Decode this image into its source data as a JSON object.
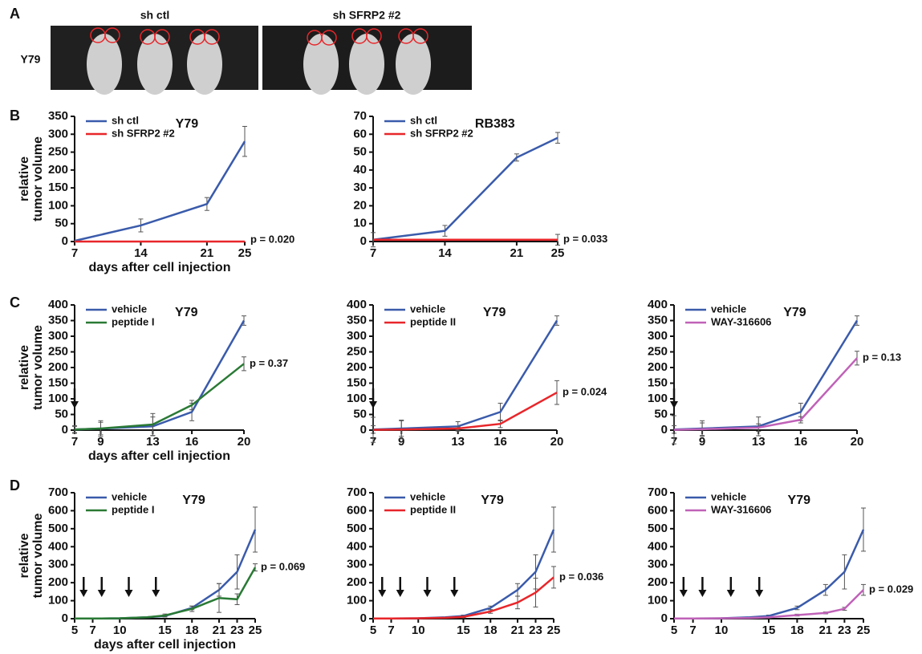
{
  "panel_labels": [
    "A",
    "B",
    "C",
    "D"
  ],
  "panel_a": {
    "columns": [
      "sh ctl",
      "sh SFRP2 #2"
    ],
    "row_label": "Y79"
  },
  "chart_data": [
    {
      "type": "line",
      "title": "Y79",
      "x": [
        7,
        14,
        21,
        25
      ],
      "xlim": [
        7,
        25
      ],
      "xticks": [
        7,
        14,
        21,
        25
      ],
      "ylim": [
        0,
        350
      ],
      "yticks": [
        0,
        50,
        100,
        150,
        200,
        250,
        300,
        350
      ],
      "xlabel": "days after cell injection",
      "ylabel": [
        "relative",
        "tumor volume"
      ],
      "annotation": "p = 0.020",
      "series": [
        {
          "name": "sh ctl",
          "color": "#3a5bab",
          "values": [
            2,
            45,
            105,
            280
          ],
          "errors": [
            0,
            18,
            18,
            42
          ]
        },
        {
          "name": "sh SFRP2 #2",
          "color": "#e8262a",
          "values": [
            0,
            0,
            0,
            0
          ],
          "errors": [
            0,
            0,
            0,
            0
          ]
        }
      ]
    },
    {
      "type": "line",
      "title": "RB383",
      "x": [
        7,
        14,
        21,
        25
      ],
      "xlim": [
        7,
        25
      ],
      "xticks": [
        7,
        14,
        21,
        25
      ],
      "ylim": [
        0,
        70
      ],
      "yticks": [
        0,
        10,
        20,
        30,
        40,
        50,
        60,
        70
      ],
      "annotation": "p = 0.033",
      "series": [
        {
          "name": "sh ctl",
          "color": "#3a5bab",
          "values": [
            1,
            6,
            47,
            58
          ],
          "errors": [
            0,
            3,
            2,
            3
          ]
        },
        {
          "name": "sh SFRP2 #2",
          "color": "#e8262a",
          "values": [
            1,
            1,
            1,
            1
          ],
          "errors": [
            4,
            0,
            0,
            3
          ]
        }
      ]
    },
    {
      "type": "line",
      "title": "Y79",
      "x": [
        7,
        9,
        13,
        16,
        20
      ],
      "xlim": [
        7,
        20
      ],
      "xticks": [
        7,
        9,
        13,
        16,
        20
      ],
      "ylim": [
        0,
        400
      ],
      "yticks": [
        0,
        50,
        100,
        150,
        200,
        250,
        300,
        350,
        400
      ],
      "xlabel": "days after cell injection",
      "ylabel": [
        "relative",
        "tumor volume"
      ],
      "annotation": "p = 0.37",
      "arrows_x": [
        7
      ],
      "series": [
        {
          "name": "vehicle",
          "color": "#3a5bab",
          "values": [
            2,
            5,
            12,
            58,
            350
          ],
          "errors": [
            12,
            25,
            30,
            28,
            15
          ]
        },
        {
          "name": "peptide I",
          "color": "#2a7a35",
          "values": [
            2,
            5,
            18,
            80,
            212
          ],
          "errors": [
            10,
            20,
            35,
            15,
            22
          ]
        }
      ]
    },
    {
      "type": "line",
      "title": "Y79",
      "x": [
        7,
        9,
        13,
        16,
        20
      ],
      "xlim": [
        7,
        20
      ],
      "xticks": [
        7,
        9,
        13,
        16,
        20
      ],
      "ylim": [
        0,
        400
      ],
      "yticks": [
        0,
        50,
        100,
        150,
        200,
        250,
        300,
        350,
        400
      ],
      "annotation": "p = 0.024",
      "arrows_x": [
        7
      ],
      "series": [
        {
          "name": "vehicle",
          "color": "#3a5bab",
          "values": [
            2,
            5,
            12,
            58,
            350
          ],
          "errors": [
            12,
            25,
            15,
            28,
            15
          ]
        },
        {
          "name": "peptide II",
          "color": "#e8262a",
          "values": [
            1,
            2,
            5,
            20,
            120
          ],
          "errors": [
            40,
            30,
            5,
            12,
            38
          ]
        }
      ]
    },
    {
      "type": "line",
      "title": "Y79",
      "x": [
        7,
        9,
        13,
        16,
        20
      ],
      "xlim": [
        7,
        20
      ],
      "xticks": [
        7,
        9,
        13,
        16,
        20
      ],
      "ylim": [
        0,
        400
      ],
      "yticks": [
        0,
        50,
        100,
        150,
        200,
        250,
        300,
        350,
        400
      ],
      "annotation": "p = 0.13",
      "arrows_x": [
        7
      ],
      "series": [
        {
          "name": "vehicle",
          "color": "#3a5bab",
          "values": [
            2,
            5,
            12,
            58,
            350
          ],
          "errors": [
            12,
            25,
            30,
            28,
            15
          ]
        },
        {
          "name": "WAY-316606",
          "color": "#c062b8",
          "values": [
            1,
            3,
            8,
            33,
            230
          ],
          "errors": [
            45,
            20,
            12,
            10,
            22
          ]
        }
      ]
    },
    {
      "type": "line",
      "title": "Y79",
      "x": [
        5,
        7,
        10,
        13,
        15,
        18,
        21,
        23,
        25
      ],
      "xlim": [
        5,
        25
      ],
      "xticks": [
        5,
        7,
        10,
        15,
        18,
        21,
        23,
        25
      ],
      "ylim": [
        0,
        700
      ],
      "yticks": [
        0,
        100,
        200,
        300,
        400,
        500,
        600,
        700
      ],
      "xlabel": "days after cell injection",
      "ylabel": [
        "relative",
        "tumor volume"
      ],
      "annotation": "p = 0.069",
      "arrows_x": [
        6,
        8,
        11,
        14
      ],
      "series": [
        {
          "name": "vehicle",
          "color": "#3a5bab",
          "values": [
            1,
            1,
            2,
            8,
            15,
            60,
            160,
            260,
            495
          ],
          "errors": [
            0,
            0,
            0,
            0,
            5,
            10,
            35,
            95,
            125
          ]
        },
        {
          "name": "peptide I",
          "color": "#2a7a35",
          "values": [
            1,
            1,
            2,
            8,
            18,
            55,
            115,
            108,
            285
          ],
          "errors": [
            0,
            0,
            0,
            0,
            8,
            15,
            80,
            30,
            20
          ]
        }
      ]
    },
    {
      "type": "line",
      "title": "Y79",
      "x": [
        5,
        7,
        10,
        13,
        15,
        18,
        21,
        23,
        25
      ],
      "xlim": [
        5,
        25
      ],
      "xticks": [
        5,
        7,
        10,
        15,
        18,
        21,
        23,
        25
      ],
      "ylim": [
        0,
        700
      ],
      "yticks": [
        0,
        100,
        200,
        300,
        400,
        500,
        600,
        700
      ],
      "annotation": "p = 0.036",
      "arrows_x": [
        6,
        8,
        11,
        14
      ],
      "series": [
        {
          "name": "vehicle",
          "color": "#3a5bab",
          "values": [
            1,
            1,
            2,
            8,
            15,
            60,
            160,
            260,
            495
          ],
          "errors": [
            0,
            0,
            0,
            0,
            5,
            10,
            35,
            95,
            125
          ]
        },
        {
          "name": "peptide II",
          "color": "#e8262a",
          "values": [
            1,
            1,
            2,
            5,
            10,
            40,
            90,
            145,
            230
          ],
          "errors": [
            0,
            0,
            0,
            0,
            5,
            10,
            35,
            80,
            60
          ]
        }
      ]
    },
    {
      "type": "line",
      "title": "Y79",
      "x": [
        5,
        7,
        10,
        13,
        15,
        18,
        21,
        23,
        25
      ],
      "xlim": [
        5,
        25
      ],
      "xticks": [
        5,
        7,
        10,
        15,
        18,
        21,
        23,
        25
      ],
      "ylim": [
        0,
        700
      ],
      "yticks": [
        0,
        100,
        200,
        300,
        400,
        500,
        600,
        700
      ],
      "annotation": "p = 0.029",
      "arrows_x": [
        6,
        8,
        11,
        14
      ],
      "series": [
        {
          "name": "vehicle",
          "color": "#3a5bab",
          "values": [
            1,
            1,
            2,
            8,
            15,
            60,
            160,
            260,
            495
          ],
          "errors": [
            0,
            0,
            0,
            0,
            5,
            10,
            30,
            95,
            120
          ]
        },
        {
          "name": "WAY-316606",
          "color": "#c062b8",
          "values": [
            1,
            1,
            2,
            4,
            8,
            20,
            32,
            55,
            160
          ],
          "errors": [
            0,
            0,
            0,
            0,
            3,
            5,
            5,
            8,
            30
          ]
        }
      ]
    }
  ]
}
